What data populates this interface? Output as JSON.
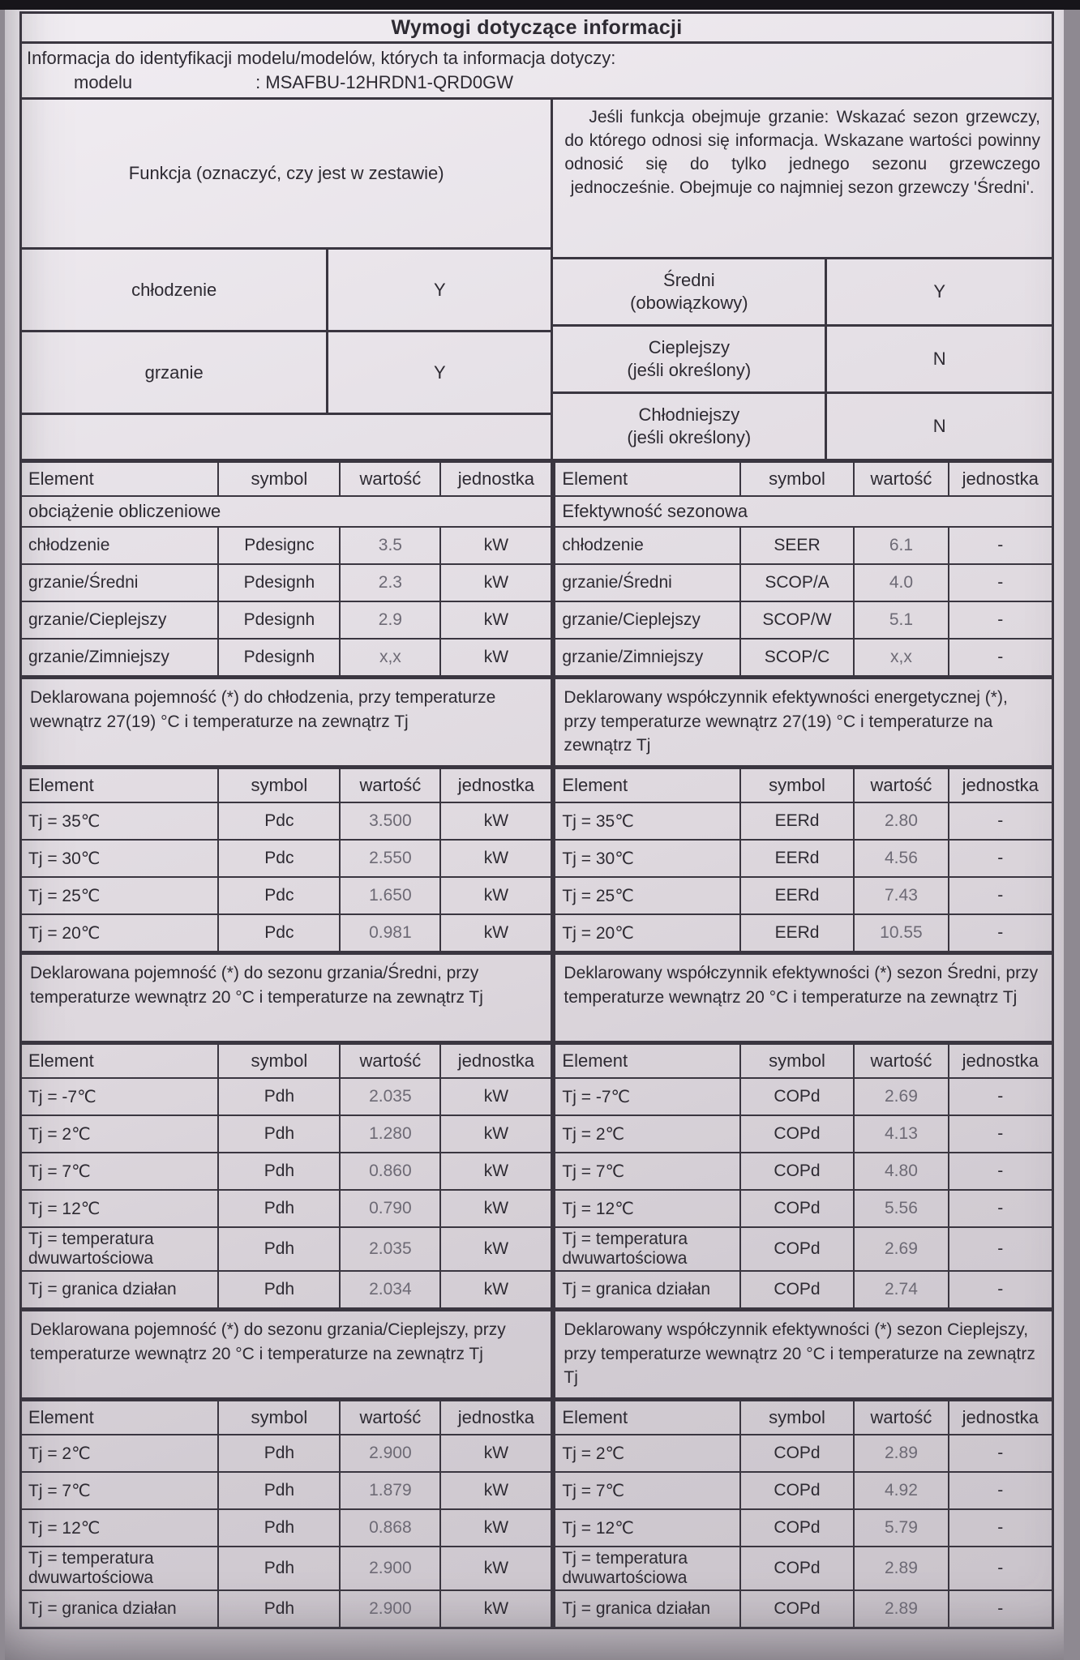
{
  "document": {
    "title": "Wymogi dotyczące informacji",
    "info_line": "Informacja do identyfikacji modelu/modelów, których ta informacja dotyczy:",
    "model_label": "modelu",
    "model_value": ": MSAFBU-12HRDN1-QRD0GW"
  },
  "functions": {
    "left_header": "Funkcja (oznaczyć, czy jest w zestawie)",
    "right_note": "Jeśli funkcja obejmuje grzanie: Wskazać sezon grzewczy, do którego odnosi się informacja. Wskazane wartości powinny odnosić się do tylko jednego sezonu grzewczego jednocześnie. Obejmuje co najmniej sezon grzewczy 'Średni'.",
    "left_rows": [
      {
        "label": "chłodzenie",
        "value": "Y"
      },
      {
        "label": "grzanie",
        "value": "Y"
      }
    ],
    "right_rows": [
      {
        "label": "Średni",
        "sublabel": "(obowiązkowy)",
        "value": "Y"
      },
      {
        "label": "Cieplejszy",
        "sublabel": "(jeśli określony)",
        "value": "N"
      },
      {
        "label": "Chłodniejszy",
        "sublabel": "(jeśli określony)",
        "value": "N"
      }
    ]
  },
  "table_headers": [
    "Element",
    "symbol",
    "wartość",
    "jednostka"
  ],
  "left_column": {
    "blocks": [
      {
        "type": "table",
        "full_row": "obciążenie obliczeniowe",
        "rows": [
          [
            "chłodzenie",
            "Pdesignc",
            "3.5",
            "kW"
          ],
          [
            "grzanie/Średni",
            "Pdesignh",
            "2.3",
            "kW"
          ],
          [
            "grzanie/Cieplejszy",
            "Pdesignh",
            "2.9",
            "kW"
          ],
          [
            "grzanie/Zimniejszy",
            "Pdesignh",
            "x,x",
            "kW"
          ]
        ]
      },
      {
        "type": "paragraph",
        "text": "Deklarowana pojemność (*) do chłodzenia, przy temperaturze wewnątrz 27(19) °C i temperaturze na zewnątrz Tj"
      },
      {
        "type": "table",
        "rows": [
          [
            "Tj = 35℃",
            "Pdc",
            "3.500",
            "kW"
          ],
          [
            "Tj = 30℃",
            "Pdc",
            "2.550",
            "kW"
          ],
          [
            "Tj = 25℃",
            "Pdc",
            "1.650",
            "kW"
          ],
          [
            "Tj = 20℃",
            "Pdc",
            "0.981",
            "kW"
          ]
        ]
      },
      {
        "type": "paragraph",
        "text": "Deklarowana pojemność (*) do sezonu grzania/Średni, przy temperaturze wewnątrz 20 °C i temperaturze na zewnątrz Tj"
      },
      {
        "type": "table",
        "rows": [
          [
            "Tj = -7℃",
            "Pdh",
            "2.035",
            "kW"
          ],
          [
            "Tj = 2℃",
            "Pdh",
            "1.280",
            "kW"
          ],
          [
            "Tj = 7℃",
            "Pdh",
            "0.860",
            "kW"
          ],
          [
            "Tj = 12℃",
            "Pdh",
            "0.790",
            "kW"
          ],
          [
            "Tj = temperatura dwuwartościowa",
            "Pdh",
            "2.035",
            "kW"
          ],
          [
            "Tj = granica działan",
            "Pdh",
            "2.034",
            "kW"
          ]
        ]
      },
      {
        "type": "paragraph",
        "text": "Deklarowana pojemność (*) do sezonu grzania/Cieplejszy, przy temperaturze wewnątrz 20 °C i temperaturze na zewnątrz Tj"
      },
      {
        "type": "table",
        "rows": [
          [
            "Tj = 2℃",
            "Pdh",
            "2.900",
            "kW"
          ],
          [
            "Tj = 7℃",
            "Pdh",
            "1.879",
            "kW"
          ],
          [
            "Tj = 12℃",
            "Pdh",
            "0.868",
            "kW"
          ],
          [
            "Tj = temperatura dwuwartościowa",
            "Pdh",
            "2.900",
            "kW"
          ],
          [
            "Tj = granica działan",
            "Pdh",
            "2.900",
            "kW"
          ]
        ]
      }
    ]
  },
  "right_column": {
    "blocks": [
      {
        "type": "table",
        "full_row": "Efektywność sezonowa",
        "rows": [
          [
            "chłodzenie",
            "SEER",
            "6.1",
            "-"
          ],
          [
            "grzanie/Średni",
            "SCOP/A",
            "4.0",
            "-"
          ],
          [
            "grzanie/Cieplejszy",
            "SCOP/W",
            "5.1",
            "-"
          ],
          [
            "grzanie/Zimniejszy",
            "SCOP/C",
            "x,x",
            "-"
          ]
        ]
      },
      {
        "type": "paragraph",
        "text": "Deklarowany współczynnik efektywności energetycznej (*), przy temperaturze wewnątrz 27(19) °C i temperaturze na zewnątrz Tj"
      },
      {
        "type": "table",
        "rows": [
          [
            "Tj = 35℃",
            "EERd",
            "2.80",
            "-"
          ],
          [
            "Tj = 30℃",
            "EERd",
            "4.56",
            "-"
          ],
          [
            "Tj = 25℃",
            "EERd",
            "7.43",
            "-"
          ],
          [
            "Tj = 20℃",
            "EERd",
            "10.55",
            "-"
          ]
        ]
      },
      {
        "type": "paragraph",
        "text": "Deklarowany współczynnik efektywności (*) sezon Średni, przy temperaturze wewnątrz 20 °C i temperaturze na zewnątrz Tj"
      },
      {
        "type": "table",
        "rows": [
          [
            "Tj = -7℃",
            "COPd",
            "2.69",
            "-"
          ],
          [
            "Tj = 2℃",
            "COPd",
            "4.13",
            "-"
          ],
          [
            "Tj = 7℃",
            "COPd",
            "4.80",
            "-"
          ],
          [
            "Tj = 12℃",
            "COPd",
            "5.56",
            "-"
          ],
          [
            "Tj = temperatura dwuwartościowa",
            "COPd",
            "2.69",
            "-"
          ],
          [
            "Tj = granica działan",
            "COPd",
            "2.74",
            "-"
          ]
        ]
      },
      {
        "type": "paragraph",
        "text": "Deklarowany współczynnik efektywności (*) sezon Cieplejszy, przy temperaturze wewnątrz 20 °C i temperaturze na zewnątrz Tj"
      },
      {
        "type": "table",
        "rows": [
          [
            "Tj = 2℃",
            "COPd",
            "2.89",
            "-"
          ],
          [
            "Tj = 7℃",
            "COPd",
            "4.92",
            "-"
          ],
          [
            "Tj = 12℃",
            "COPd",
            "5.79",
            "-"
          ],
          [
            "Tj = temperatura dwuwartościowa",
            "COPd",
            "2.89",
            "-"
          ],
          [
            "Tj = granica działan",
            "COPd",
            "2.89",
            "-"
          ]
        ]
      }
    ]
  }
}
